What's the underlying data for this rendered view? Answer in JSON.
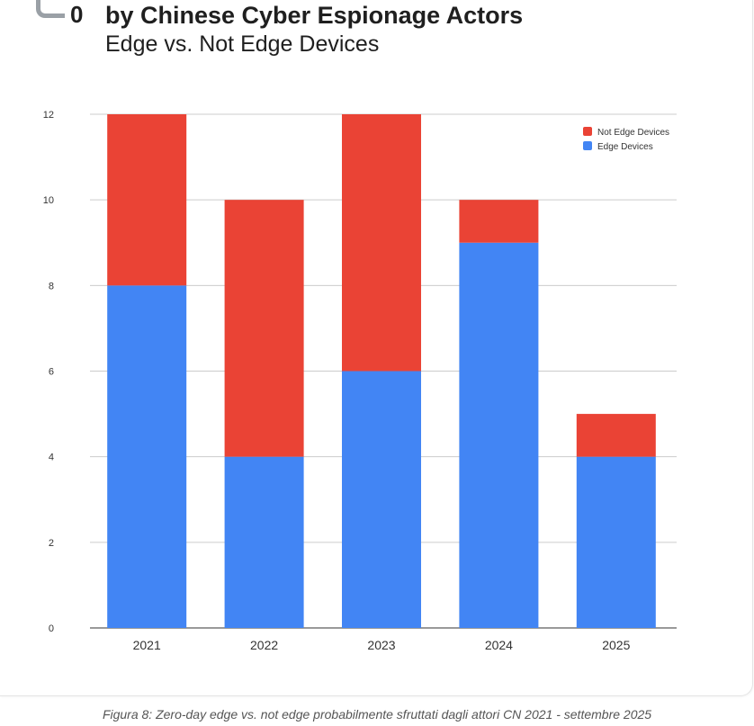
{
  "header": {
    "logo_digit": "0",
    "title": "by Chinese Cyber Espionage Actors",
    "subtitle": "Edge vs. Not Edge Devices"
  },
  "caption": "Figura 8: Zero-day edge vs. not edge probabilmente sfruttati dagli attori CN 2021 - settembre 2025",
  "colors": {
    "edge": "#4285f4",
    "not_edge": "#ea4335",
    "grid": "#cccccc"
  },
  "chart_data": {
    "type": "bar",
    "stacked": true,
    "title": "by Chinese Cyber Espionage Actors",
    "subtitle": "Edge vs. Not Edge Devices",
    "categories": [
      "2021",
      "2022",
      "2023",
      "2024",
      "2025"
    ],
    "series": [
      {
        "name": "Edge Devices",
        "values": [
          8,
          4,
          6,
          9,
          4
        ]
      },
      {
        "name": "Not Edge Devices",
        "values": [
          4,
          6,
          6,
          1,
          1
        ]
      }
    ],
    "legend": [
      "Not Edge Devices",
      "Edge Devices"
    ],
    "legend_position": "top-right",
    "yticks": [
      "0",
      "2",
      "4",
      "6",
      "8",
      "10",
      "12"
    ],
    "ylim": [
      0,
      12
    ],
    "xlabel": "",
    "ylabel": "",
    "grid": true
  }
}
